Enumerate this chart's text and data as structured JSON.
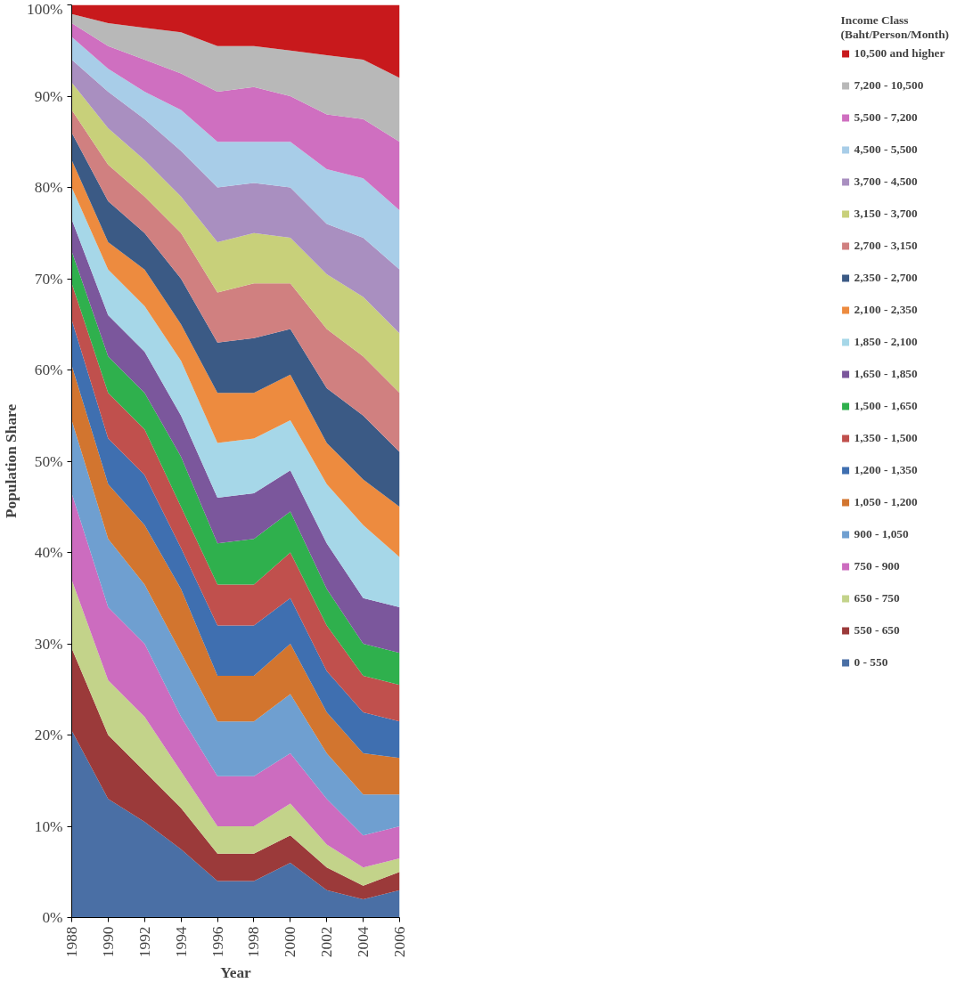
{
  "chart_data": {
    "type": "area",
    "stacked": true,
    "xlabel": "Year",
    "ylabel": "Population Share",
    "legend_title": "Income Class\n(Baht/Person/Month)",
    "legend": "right",
    "grid": false,
    "x": [
      1988,
      1990,
      1992,
      1994,
      1996,
      1998,
      2000,
      2002,
      2004,
      2006
    ],
    "xlim": [
      1988,
      2006
    ],
    "xticks": [
      1988,
      1990,
      1992,
      1994,
      1996,
      1998,
      2000,
      2002,
      2004,
      2006
    ],
    "ylim": [
      0,
      100
    ],
    "yticks": [
      {
        "value": 0,
        "label": "0%"
      },
      {
        "value": 10,
        "label": "10%"
      },
      {
        "value": 20,
        "label": "20%"
      },
      {
        "value": 30,
        "label": "30%"
      },
      {
        "value": 40,
        "label": "40%"
      },
      {
        "value": 50,
        "label": "50%"
      },
      {
        "value": 60,
        "label": "60%"
      },
      {
        "value": 70,
        "label": "70%"
      },
      {
        "value": 80,
        "label": "80%"
      },
      {
        "value": 90,
        "label": "90%"
      },
      {
        "value": 100,
        "label": "100%"
      }
    ],
    "series": [
      {
        "name": "0 - 550",
        "color": "#4a6fa5",
        "values": [
          20.5,
          13,
          10.5,
          7.5,
          4,
          4,
          6,
          3,
          2,
          3
        ]
      },
      {
        "name": "550 - 650",
        "color": "#9b3a3a",
        "values": [
          9,
          7,
          5.5,
          4.5,
          3,
          3,
          3,
          2.5,
          1.5,
          2
        ]
      },
      {
        "name": "650 - 750",
        "color": "#c3d38a",
        "values": [
          7.5,
          6,
          6,
          4,
          3,
          3,
          3.5,
          2.5,
          2,
          1.5
        ]
      },
      {
        "name": "750 - 900",
        "color": "#cc6cbf",
        "values": [
          9.5,
          8,
          8,
          6,
          5.5,
          5.5,
          5.5,
          5,
          3.5,
          3.5
        ]
      },
      {
        "name": "900 - 1,050",
        "color": "#6f9fd0",
        "values": [
          8,
          7.5,
          6.5,
          7,
          6,
          6,
          6.5,
          5,
          4.5,
          3.5
        ]
      },
      {
        "name": "1,050 - 1,200",
        "color": "#d2752f",
        "values": [
          6,
          6,
          6.5,
          7,
          5,
          5,
          5.5,
          4.5,
          4.5,
          4
        ]
      },
      {
        "name": "1,200 - 1,350",
        "color": "#3f6fb0",
        "values": [
          5,
          5,
          5.5,
          4.5,
          5.5,
          5.5,
          5,
          4.5,
          4.5,
          4
        ]
      },
      {
        "name": "1,350 - 1,500",
        "color": "#c0504d",
        "values": [
          4,
          5,
          5,
          4.5,
          4.5,
          4.5,
          5,
          5,
          4,
          4
        ]
      },
      {
        "name": "1,500 - 1,650",
        "color": "#2fb04d",
        "values": [
          3.5,
          4,
          4,
          5.5,
          4.5,
          5,
          4.5,
          4,
          3.5,
          3.5
        ]
      },
      {
        "name": "1,650 - 1,850",
        "color": "#7b579c",
        "values": [
          3.5,
          4.5,
          4.5,
          4.5,
          5,
          5,
          4.5,
          5,
          5,
          5
        ]
      },
      {
        "name": "1,850 - 2,100",
        "color": "#a6d7e8",
        "values": [
          3.5,
          5,
          5,
          6,
          6,
          6,
          5.5,
          6.5,
          8,
          5.5
        ]
      },
      {
        "name": "2,100 - 2,350",
        "color": "#ed8b3f",
        "values": [
          3,
          3,
          4,
          4,
          5.5,
          5,
          5,
          4.5,
          5,
          5.5
        ]
      },
      {
        "name": "2,350 - 2,700",
        "color": "#3b5a85",
        "values": [
          3,
          4.5,
          4,
          5,
          5.5,
          6,
          5,
          6,
          7,
          6
        ]
      },
      {
        "name": "2,700 - 3,150",
        "color": "#d08080",
        "values": [
          2.5,
          4,
          4,
          5,
          5.5,
          6,
          5,
          6.5,
          6.5,
          6.5
        ]
      },
      {
        "name": "3,150 - 3,700",
        "color": "#c8d07a",
        "values": [
          3,
          4,
          4,
          4,
          5.5,
          5.5,
          5,
          6,
          6.5,
          6.5
        ]
      },
      {
        "name": "3,700 - 4,500",
        "color": "#a98fc0",
        "values": [
          2.5,
          4,
          4.5,
          5,
          6,
          5.5,
          5.5,
          5.5,
          6.5,
          7
        ]
      },
      {
        "name": "4,500 - 5,500",
        "color": "#a8cde8",
        "values": [
          2.5,
          2.5,
          3,
          4.5,
          5,
          4.5,
          5,
          6,
          6.5,
          6.5
        ]
      },
      {
        "name": "5,500 - 7,200",
        "color": "#cf6fc0",
        "values": [
          1.5,
          2.5,
          3.5,
          4,
          5.5,
          6,
          5,
          6,
          6.5,
          7.5
        ]
      },
      {
        "name": "7,200 - 10,500",
        "color": "#b8b8b8",
        "values": [
          1,
          2.5,
          3.5,
          4.5,
          5,
          4.5,
          5,
          6.5,
          6.5,
          7
        ]
      },
      {
        "name": "10,500 and higher",
        "color": "#c8191c",
        "values": [
          1,
          2,
          2.5,
          3,
          4.5,
          4.5,
          5,
          5.5,
          6,
          8
        ]
      }
    ]
  }
}
